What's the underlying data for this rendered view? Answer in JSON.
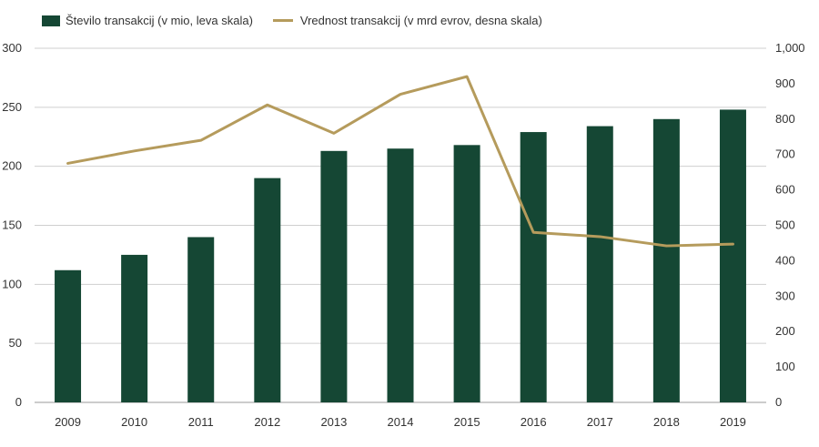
{
  "chart_data": {
    "type": "bar",
    "categories": [
      "2009",
      "2010",
      "2011",
      "2012",
      "2013",
      "2014",
      "2015",
      "2016",
      "2017",
      "2018",
      "2019"
    ],
    "series": [
      {
        "name": "Število transakcij (v mio, leva skala)",
        "type": "bar",
        "axis": "left",
        "color": "#154734",
        "values": [
          112,
          125,
          140,
          190,
          213,
          215,
          218,
          229,
          234,
          240,
          248
        ]
      },
      {
        "name": "Vrednost transakcij (v mrd evrov, desna skala)",
        "type": "line",
        "axis": "right",
        "color": "#b59b5c",
        "values": [
          675,
          710,
          740,
          840,
          760,
          870,
          920,
          480,
          468,
          442,
          447
        ]
      }
    ],
    "y_left": {
      "min": 0,
      "max": 300,
      "step": 50,
      "ticks": [
        "0",
        "50",
        "100",
        "150",
        "200",
        "250",
        "300"
      ]
    },
    "y_right": {
      "min": 0,
      "max": 1000,
      "step": 100,
      "ticks": [
        "0",
        "100",
        "200",
        "300",
        "400",
        "500",
        "600",
        "700",
        "800",
        "900",
        "1,000"
      ]
    },
    "grid": true,
    "legend_position": "top-left",
    "title": "",
    "xlabel": "",
    "ylabel": ""
  }
}
